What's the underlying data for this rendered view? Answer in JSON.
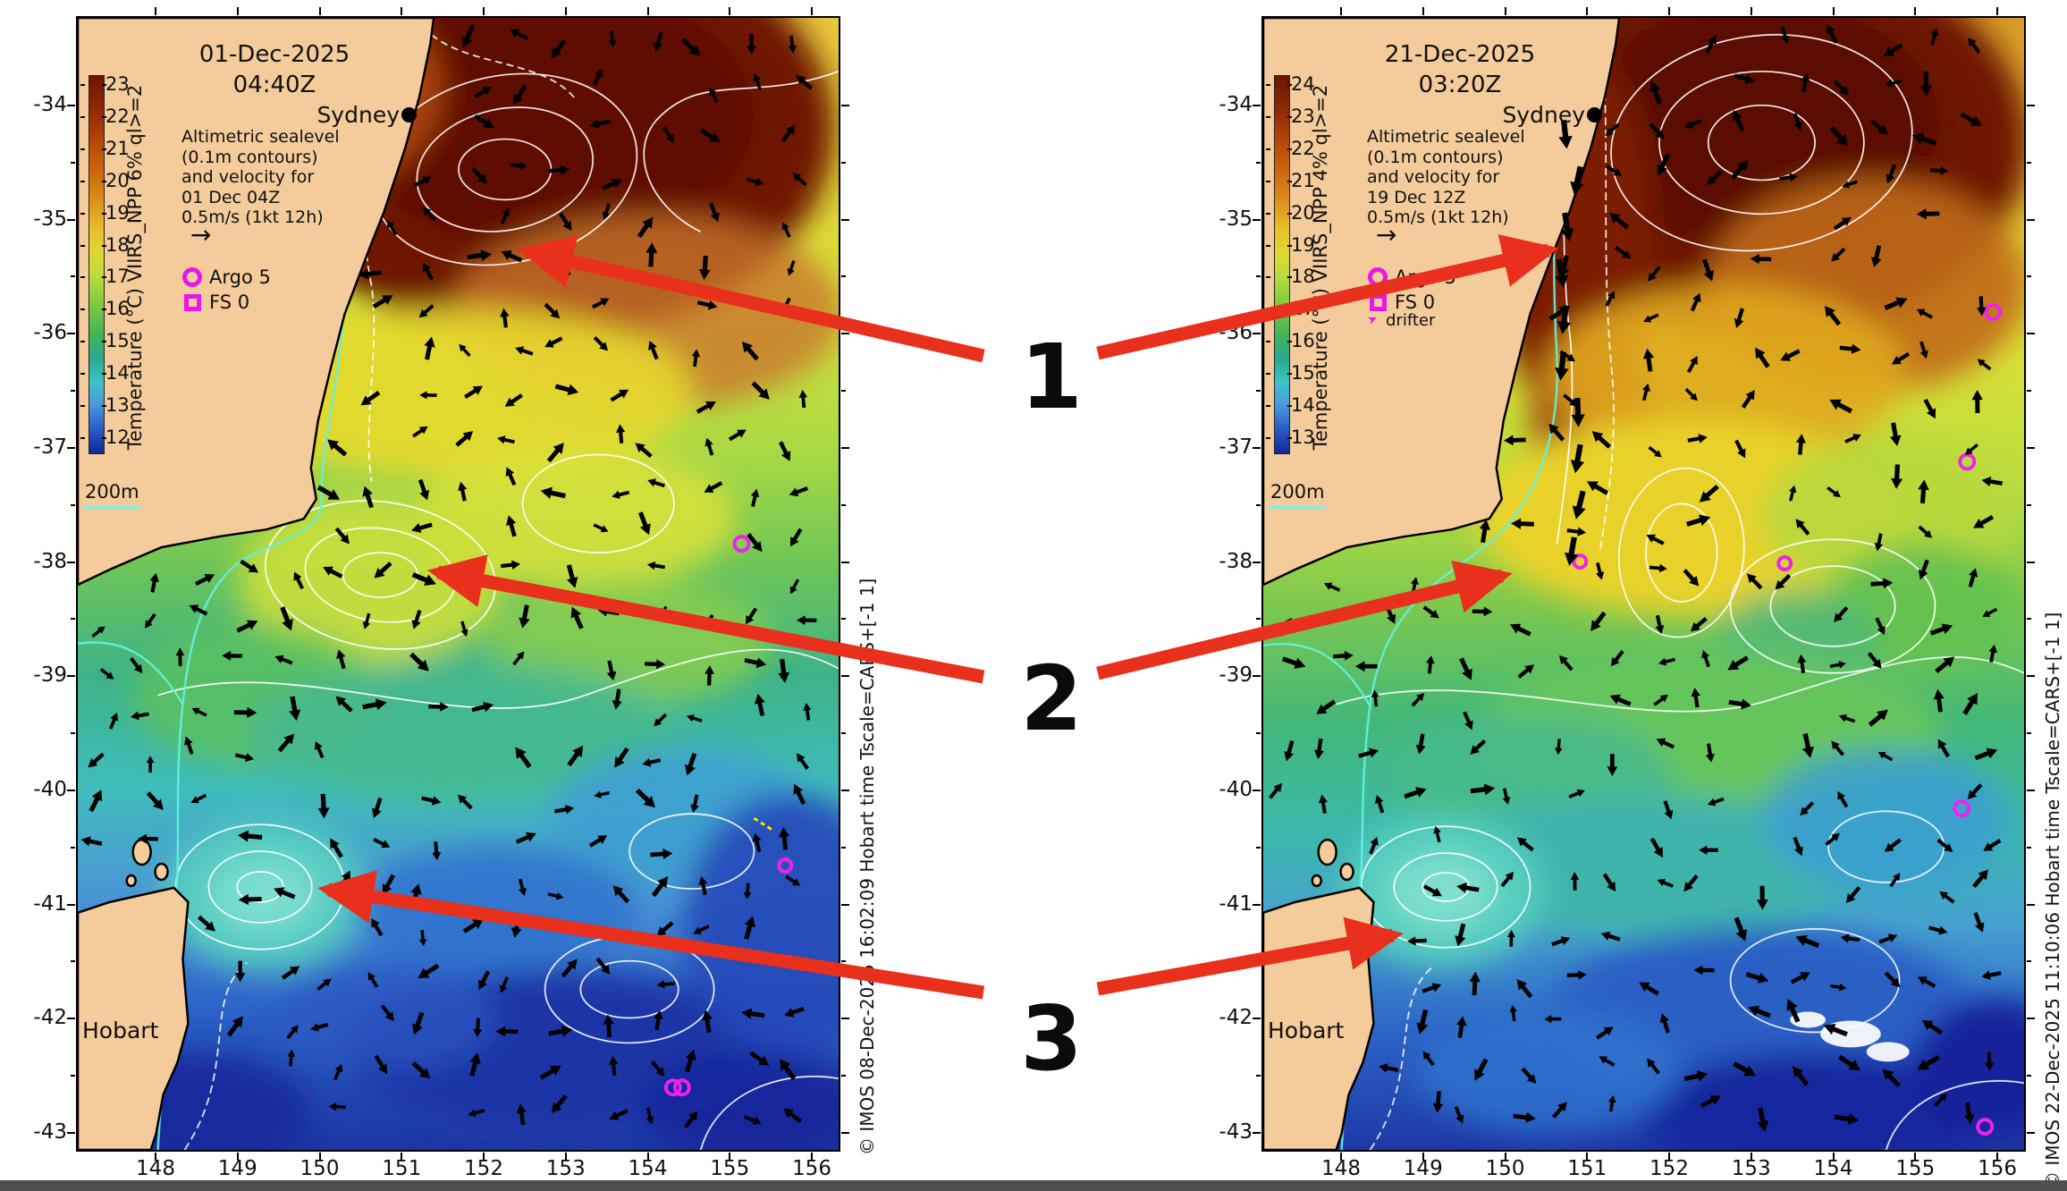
{
  "page": {
    "background": "#ffffff",
    "bottom_bar_color": "#4f4f4f"
  },
  "axes": {
    "lat_ticks": [
      "-34",
      "-35",
      "-36",
      "-37",
      "-38",
      "-39",
      "-40",
      "-41",
      "-42",
      "-43"
    ],
    "lon_ticks": [
      "148",
      "149",
      "150",
      "151",
      "152",
      "153",
      "154",
      "155",
      "156"
    ]
  },
  "annotations": {
    "labels": [
      "1",
      "2",
      "3"
    ],
    "arrow_color": "#e8301c"
  },
  "maps": [
    {
      "title_date": "01-Dec-2025",
      "title_time": "04:40Z",
      "city": "Sydney",
      "city2": "Hobart",
      "info_lines": "Altimetric sealevel\n(0.1m contours)\nand velocity for\n01 Dec 04Z\n0.5m/s (1kt 12h)",
      "velocity_glyph": "→",
      "legend": {
        "argo": "Argo 5",
        "fs": "FS 0"
      },
      "depth_label": "200m",
      "colorbar": {
        "label": "Temperature (°C) VIIRS_NPP 6% ql>=2",
        "ticks": [
          "23",
          "22",
          "21",
          "20",
          "19",
          "18",
          "17",
          "16",
          "15",
          "14",
          "13",
          "12"
        ]
      },
      "attribution": "© IMOS 08-Dec-2025 16:02:09 Hobart time Tscale=CARS+[-1 1]"
    },
    {
      "title_date": "21-Dec-2025",
      "title_time": "03:20Z",
      "city": "Sydney",
      "city2": "Hobart",
      "info_lines": "Altimetric sealevel\n(0.1m contours)\nand velocity for\n19 Dec 12Z\n0.5m/s (1kt 12h)",
      "velocity_glyph": "→",
      "legend": {
        "argo": "Argo 5",
        "fs": "FS 0",
        "drifter": "drifter"
      },
      "depth_label": "200m",
      "colorbar": {
        "label": "Temperature (°C) VIIRS_NPP 4% ql>=2",
        "ticks": [
          "24",
          "23",
          "22",
          "21",
          "20",
          "19",
          "18",
          "17",
          "16",
          "15",
          "14",
          "13"
        ]
      },
      "attribution": "© IMOS 22-Dec-2025 11:10:06 Hobart time Tscale=CARS+[-1 1]"
    }
  ]
}
